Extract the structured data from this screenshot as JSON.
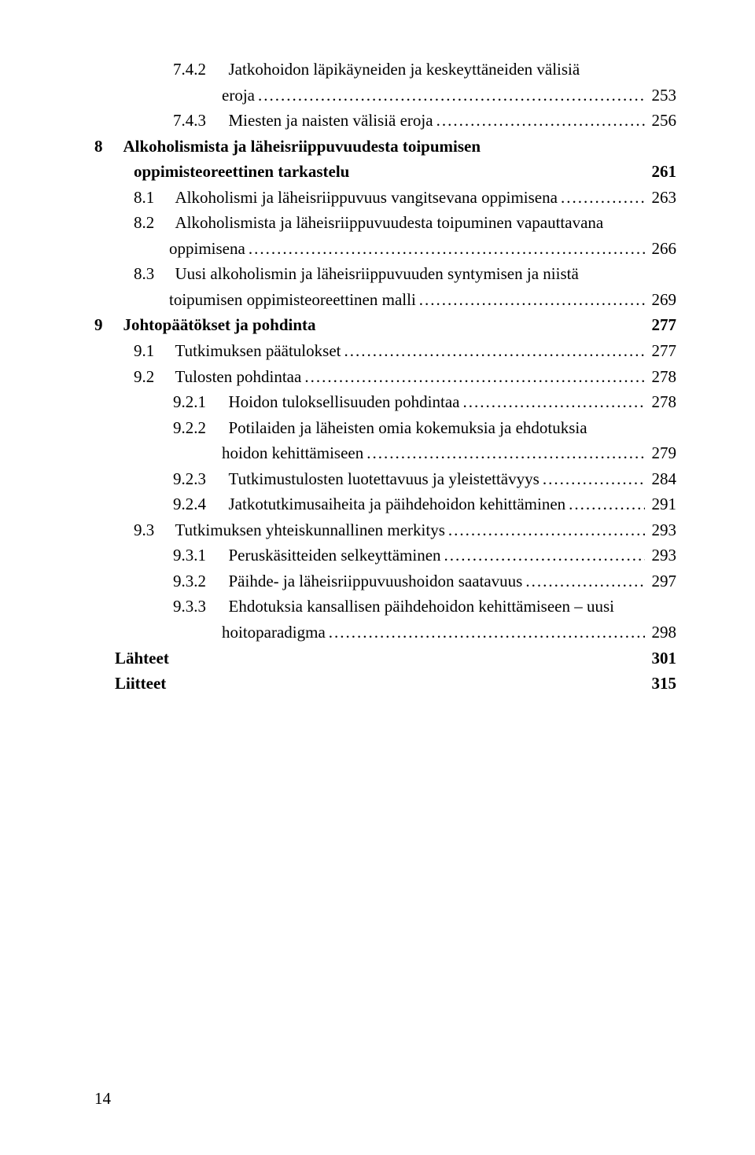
{
  "toc": {
    "entries": [
      {
        "indent": 2,
        "num": "7.4.2",
        "label_a": "Jatkohoidon läpikäyneiden ja keskeyttäneiden välisiä",
        "label_b": "eroja",
        "page": "253",
        "dots": true
      },
      {
        "indent": 2,
        "num": "7.4.3",
        "label_a": "Miesten ja naisten välisiä eroja",
        "page": "256",
        "dots": true
      },
      {
        "indent": 0,
        "num": "8",
        "label_a": "Alkoholismista ja läheisriippuvuudesta toipumisen",
        "label_b": "oppimisteoreettinen tarkastelu",
        "page": "261",
        "bold": true,
        "dots": false
      },
      {
        "indent": 1,
        "num": "8.1",
        "label_a": "Alkoholismi ja läheisriippuvuus vangitsevana oppimisena",
        "page": "263",
        "dots": true
      },
      {
        "indent": 1,
        "num": "8.2",
        "label_a": "Alkoholismista ja läheisriippuvuudesta toipuminen vapauttavana",
        "label_b": "oppimisena",
        "page": "266",
        "dots": true
      },
      {
        "indent": 1,
        "num": "8.3",
        "label_a": "Uusi alkoholismin ja läheisriippuvuuden syntymisen ja niistä",
        "label_b": "toipumisen oppimisteoreettinen malli",
        "page": "269",
        "dots": true
      },
      {
        "indent": 0,
        "num": "9",
        "label_a": "Johtopäätökset ja pohdinta",
        "page": "277",
        "bold": true,
        "dots": false
      },
      {
        "indent": 1,
        "num": "9.1",
        "label_a": "Tutkimuksen päätulokset",
        "page": "277",
        "dots": true
      },
      {
        "indent": 1,
        "num": "9.2",
        "label_a": "Tulosten pohdintaa",
        "page": "278",
        "dots": true
      },
      {
        "indent": 2,
        "num": "9.2.1",
        "label_a": "Hoidon tuloksellisuuden pohdintaa",
        "page": "278",
        "dots": true
      },
      {
        "indent": 2,
        "num": "9.2.2",
        "label_a": "Potilaiden ja läheisten omia kokemuksia ja ehdotuksia",
        "label_b": "hoidon kehittämiseen",
        "page": "279",
        "dots": true
      },
      {
        "indent": 2,
        "num": "9.2.3",
        "label_a": "Tutkimustulosten luotettavuus ja yleistettävyys",
        "page": "284",
        "dots": true
      },
      {
        "indent": 2,
        "num": "9.2.4",
        "label_a": "Jatkotutkimusaiheita ja päihdehoidon kehittäminen",
        "page": "291",
        "dots": true
      },
      {
        "indent": 1,
        "num": "9.3",
        "label_a": "Tutkimuksen yhteiskunnallinen merkitys",
        "page": "293",
        "dots": true
      },
      {
        "indent": 2,
        "num": "9.3.1",
        "label_a": "Peruskäsitteiden selkeyttäminen",
        "page": "293",
        "dots": true
      },
      {
        "indent": 2,
        "num": "9.3.2",
        "label_a": "Päihde- ja läheisriippuvuushoidon saatavuus",
        "page": "297",
        "dots": true
      },
      {
        "indent": 2,
        "num": "9.3.3",
        "label_a": "Ehdotuksia kansallisen päihdehoidon kehittämiseen – uusi",
        "label_b": "hoitoparadigma",
        "page": "298",
        "dots": true
      },
      {
        "indent": 0,
        "num": "",
        "label_a": "Lähteet",
        "page": "301",
        "bold": true,
        "dots": false
      },
      {
        "indent": 0,
        "num": "",
        "label_a": "Liitteet",
        "page": "315",
        "bold": true,
        "dots": false
      }
    ]
  },
  "page_number": "14",
  "colors": {
    "text": "#000000",
    "background": "#ffffff"
  },
  "typography": {
    "font_family": "Times New Roman",
    "font_size_pt": 16
  }
}
